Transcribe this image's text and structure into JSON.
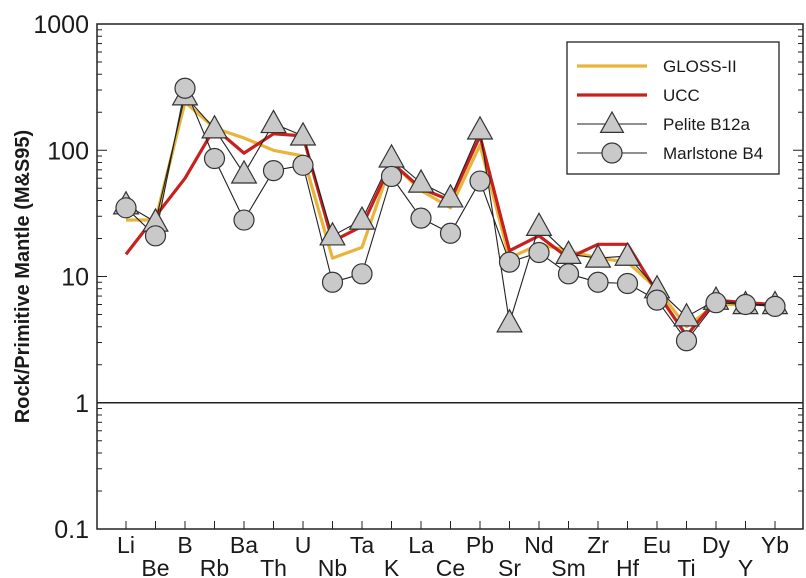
{
  "chart_data": {
    "type": "line",
    "scale_y": "log",
    "ylim": [
      0.1,
      1000
    ],
    "ylabel": "Rock/Primitive Mantle (M&S95)",
    "xlabel": "",
    "y_ticks": [
      "0.1",
      "1",
      "10",
      "100",
      "1000"
    ],
    "reference_line_y": 1,
    "legend_position": "top-right",
    "categories": [
      "Li",
      "Be",
      "B",
      "Rb",
      "Ba",
      "Th",
      "U",
      "Nb",
      "Ta",
      "K",
      "La",
      "Ce",
      "Pb",
      "Sr",
      "Nd",
      "Sm",
      "Zr",
      "Hf",
      "Eu",
      "Ti",
      "Dy",
      "Y",
      "Yb"
    ],
    "series": [
      {
        "name": "GLOSS-II",
        "color": "#e8b53a",
        "marker": "none",
        "values": [
          28,
          28,
          240,
          150,
          125,
          100,
          90,
          14,
          17,
          80,
          48,
          35,
          110,
          14,
          18,
          16,
          14,
          13,
          8,
          4,
          6,
          6,
          6
        ]
      },
      {
        "name": "UCC",
        "color": "#c8201c",
        "marker": "none",
        "values": [
          15,
          30,
          60,
          150,
          95,
          135,
          130,
          19,
          25,
          80,
          50,
          40,
          130,
          16,
          21,
          14,
          18,
          18,
          7.5,
          3.4,
          6.5,
          6.2,
          6
        ]
      },
      {
        "name": "Pelite B12a",
        "color": "#222222",
        "marker": "triangle",
        "values": [
          37,
          27,
          270,
          148,
          65,
          163,
          130,
          21,
          28,
          87,
          55,
          42,
          145,
          4.3,
          25,
          15,
          14,
          14.5,
          8,
          4.8,
          6.5,
          6,
          6
        ]
      },
      {
        "name": "Marlstone B4",
        "color": "#222222",
        "marker": "circle",
        "values": [
          35,
          21,
          310,
          86,
          28,
          69,
          76,
          9,
          10.5,
          62,
          29,
          22,
          57,
          13,
          15.5,
          10.5,
          9,
          8.8,
          6.5,
          3.1,
          6.2,
          6,
          5.8
        ]
      }
    ]
  }
}
